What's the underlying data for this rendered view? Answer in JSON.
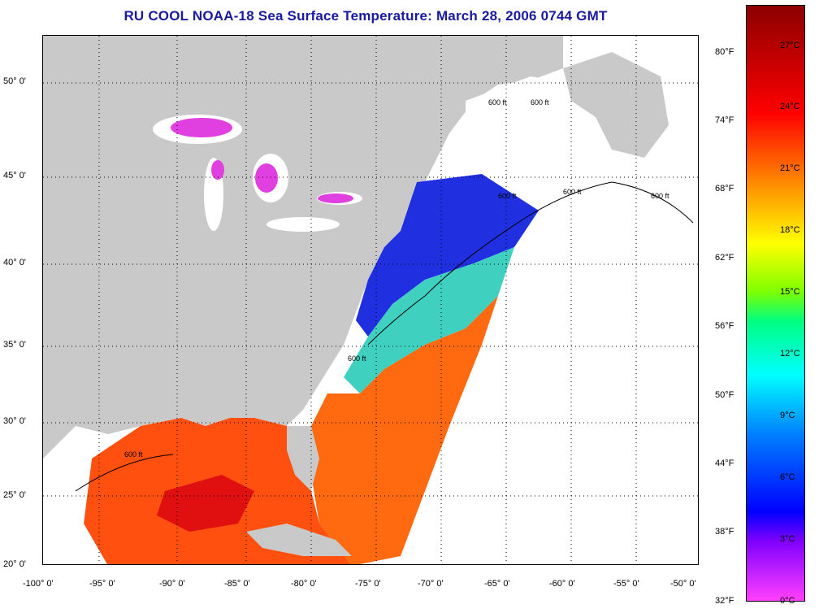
{
  "title": "RU COOL  NOAA-18  Sea Surface Temperature:  March 28, 2006 0744 GMT",
  "map": {
    "lon_range": [
      -100,
      -50
    ],
    "lat_range": [
      20,
      52.5
    ],
    "grid": "dotted",
    "lon_ticks": [
      "-100° 0'",
      "-95° 0'",
      "-90° 0'",
      "-85° 0'",
      "-80° 0'",
      "-75° 0'",
      "-70° 0'",
      "-65° 0'",
      "-60° 0'",
      "-55° 0'",
      "-50° 0'"
    ],
    "lat_ticks": [
      "20° 0'",
      "25° 0'",
      "30° 0'",
      "35° 0'",
      "40° 0'",
      "45° 0'",
      "50° 0'"
    ],
    "contour_labels": [
      "600 ft",
      "600 ft",
      "600 ft",
      "600 ft",
      "600 ft",
      "600 ft",
      "600 ft"
    ],
    "colors": {
      "land": "#c9c9c9",
      "water_no_data": "#ffffff",
      "great_lakes_sst": "#e040e0",
      "cold_shelf": "#2030e0",
      "warm_gulf": "#ff5010"
    }
  },
  "colorbar": {
    "fahrenheit_labels": [
      "80°F",
      "74°F",
      "68°F",
      "62°F",
      "56°F",
      "50°F",
      "44°F",
      "38°F",
      "32°F"
    ],
    "celsius_labels": [
      "27°C",
      "24°C",
      "21°C",
      "18°C",
      "15°C",
      "12°C",
      "9°C",
      "6°C",
      "3°C",
      "0°C"
    ],
    "gradient_stops": [
      "#8b0000",
      "#ff0000",
      "#ff8c00",
      "#ffff00",
      "#7fff00",
      "#00ff80",
      "#00ffff",
      "#0080ff",
      "#0000ff",
      "#8000ff",
      "#ff40ff"
    ]
  }
}
